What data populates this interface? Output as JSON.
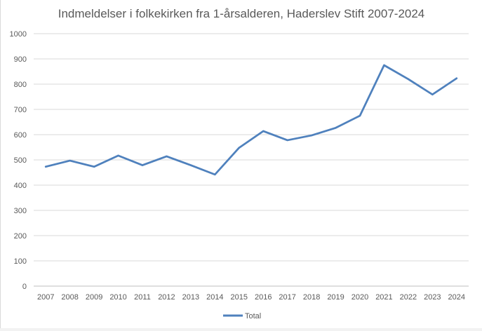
{
  "chart_data": {
    "type": "line",
    "title": "Indmeldelser i folkekirken fra 1-årsalderen, Haderslev Stift 2007-2024",
    "xlabel": "",
    "ylabel": "",
    "ylim": [
      0,
      1000
    ],
    "ytick_step": 100,
    "ytick_labels": [
      "0",
      "100",
      "200",
      "300",
      "400",
      "500",
      "600",
      "700",
      "800",
      "900",
      "1000"
    ],
    "categories": [
      "2007",
      "2008",
      "2009",
      "2010",
      "2011",
      "2012",
      "2013",
      "2014",
      "2015",
      "2016",
      "2017",
      "2018",
      "2019",
      "2020",
      "2021",
      "2022",
      "2023",
      "2024"
    ],
    "series": [
      {
        "name": "Total",
        "color": "#4f81bd",
        "values": [
          473,
          497,
          473,
          517,
          479,
          514,
          479,
          442,
          548,
          614,
          578,
          597,
          627,
          675,
          875,
          820,
          759,
          823
        ]
      }
    ],
    "grid": true,
    "legend_position": "bottom"
  }
}
